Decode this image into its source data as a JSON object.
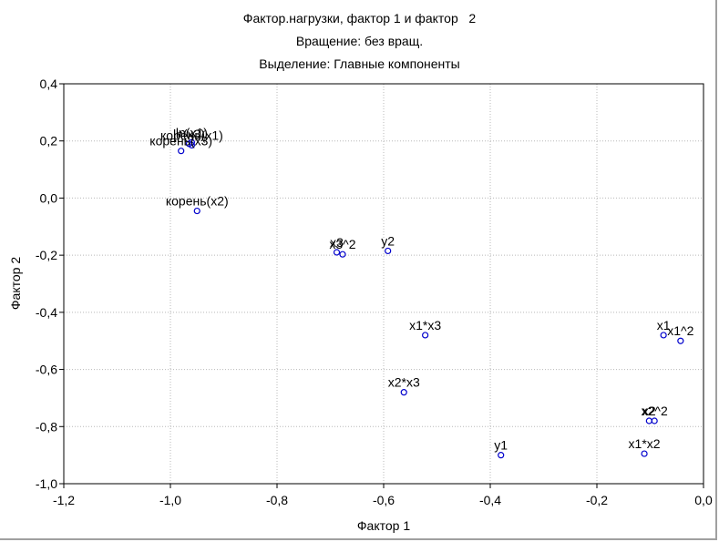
{
  "chart_data": {
    "type": "scatter",
    "title_lines": [
      "Фактор.нагрузки, фактор 1 и фактор   2",
      "Вращение: без вращ.",
      "Выделение: Главные компоненты"
    ],
    "xlabel": "Фактор 1",
    "ylabel": "Фактор 2",
    "xlim": [
      -1.2,
      0.0
    ],
    "ylim": [
      -1.0,
      0.4
    ],
    "xticks": [
      -1.2,
      -1.0,
      -0.8,
      -0.6,
      -0.4,
      -0.2,
      0.0
    ],
    "xtick_labels": [
      "-1,2",
      "-1,0",
      "-0,8",
      "-0,6",
      "-0,4",
      "-0,2",
      "0,0"
    ],
    "yticks": [
      0.4,
      0.2,
      0.0,
      -0.2,
      -0.4,
      -0.6,
      -0.8,
      -1.0
    ],
    "ytick_labels": [
      "0,4",
      "0,2",
      "0,0",
      "-0,2",
      "-0,4",
      "-0,6",
      "-0,8",
      "-1,0"
    ],
    "grid": true,
    "marker_color": "#0000cc",
    "points": [
      {
        "label": "ln(x3)",
        "x": -0.965,
        "y": 0.19
      },
      {
        "label": "ln(x1)",
        "x": -0.96,
        "y": 0.195
      },
      {
        "label": "корень(x1)",
        "x": -0.96,
        "y": 0.185
      },
      {
        "label": "корень(x3)",
        "x": -0.98,
        "y": 0.165
      },
      {
        "label": "корень(x2)",
        "x": -0.95,
        "y": -0.045
      },
      {
        "label": "x3",
        "x": -0.688,
        "y": -0.19
      },
      {
        "label": "x3^2",
        "x": -0.677,
        "y": -0.197
      },
      {
        "label": "y2",
        "x": -0.592,
        "y": -0.185
      },
      {
        "label": "x1*x3",
        "x": -0.522,
        "y": -0.48
      },
      {
        "label": "x2*x3",
        "x": -0.562,
        "y": -0.68
      },
      {
        "label": "y1",
        "x": -0.38,
        "y": -0.9
      },
      {
        "label": "x1",
        "x": -0.075,
        "y": -0.48
      },
      {
        "label": "x1^2",
        "x": -0.043,
        "y": -0.5
      },
      {
        "label": "x2",
        "x": -0.102,
        "y": -0.78
      },
      {
        "label": "x2^2",
        "x": -0.092,
        "y": -0.78
      },
      {
        "label": "x1*x2",
        "x": -0.111,
        "y": -0.895
      }
    ]
  }
}
